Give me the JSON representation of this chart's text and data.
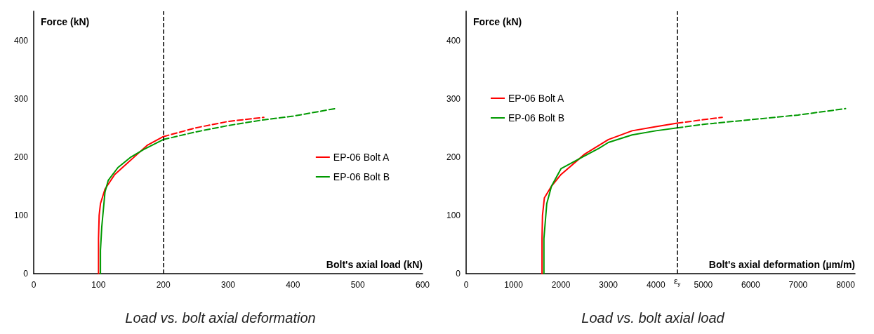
{
  "chart_data": [
    {
      "type": "line",
      "title": "Load vs. bolt axial deformation",
      "xlabel": "Bolt's axial load (kN)",
      "ylabel": "Force (kN)",
      "xlim": [
        0,
        600
      ],
      "xticks": [
        0,
        100,
        200,
        300,
        400,
        500,
        600
      ],
      "ylim": [
        0,
        450
      ],
      "yticks": [
        0,
        100,
        200,
        300,
        400
      ],
      "legend": "right",
      "line_style": "solid",
      "series": [
        {
          "name": "EP-06 Bolt A",
          "color": "#ff0000",
          "x": [
            100,
            100,
            101,
            103,
            110,
            125,
            140,
            160,
            175,
            200
          ],
          "values": [
            0,
            60,
            100,
            120,
            145,
            170,
            185,
            205,
            220,
            235
          ]
        },
        {
          "name": "EP-06 Bolt B",
          "color": "#009900",
          "x": [
            103,
            103,
            105,
            110,
            115,
            130,
            150,
            170,
            200
          ],
          "values": [
            0,
            40,
            80,
            140,
            160,
            182,
            200,
            213,
            230
          ]
        },
        {
          "color": "#ff0000",
          "line_style": "dashed",
          "x": [
            200,
            250,
            300,
            355
          ],
          "values": [
            235,
            250,
            261,
            268
          ]
        },
        {
          "color": "#009900",
          "line_style": "dashed",
          "x": [
            200,
            250,
            300,
            350,
            400,
            465
          ],
          "values": [
            230,
            243,
            254,
            263,
            270,
            283
          ]
        }
      ],
      "ref_lines": [
        {
          "axis": "x",
          "value": 200,
          "color": "#000000",
          "line_style": "dashed"
        }
      ]
    },
    {
      "type": "line",
      "title": "Load vs. bolt axial load",
      "xlabel": "Bolt's axial deformation (µm/m)",
      "ylabel": "Force (kN)",
      "xlim": [
        0,
        8200
      ],
      "xticks": [
        0,
        1000,
        2000,
        3000,
        4000,
        5000,
        6000,
        7000,
        8000
      ],
      "ylim": [
        0,
        450
      ],
      "yticks": [
        0,
        100,
        200,
        300,
        400
      ],
      "legend": "top left",
      "line_style": "solid",
      "series": [
        {
          "name": "EP-06 Bolt A",
          "color": "#ff0000",
          "x": [
            1600,
            1600,
            1610,
            1650,
            1800,
            2000,
            2500,
            3000,
            3500,
            4000,
            4450
          ],
          "values": [
            0,
            60,
            100,
            130,
            150,
            170,
            205,
            230,
            245,
            252,
            258
          ]
        },
        {
          "name": "EP-06 Bolt B",
          "color": "#009900",
          "x": [
            1640,
            1640,
            1700,
            1800,
            2000,
            2500,
            2800,
            3000,
            3500,
            4000,
            4450
          ],
          "values": [
            0,
            60,
            120,
            150,
            180,
            202,
            215,
            225,
            238,
            245,
            250
          ]
        },
        {
          "color": "#ff0000",
          "line_style": "dashed",
          "x": [
            4450,
            5000,
            5400
          ],
          "values": [
            258,
            264,
            268
          ]
        },
        {
          "color": "#009900",
          "line_style": "dashed",
          "x": [
            4450,
            5000,
            6000,
            7000,
            8000
          ],
          "values": [
            250,
            256,
            264,
            272,
            283
          ]
        }
      ],
      "ref_lines": [
        {
          "axis": "x",
          "value": 4450,
          "label": "ε$_{y}$",
          "color": "#000000",
          "line_style": "dashed"
        }
      ]
    }
  ]
}
